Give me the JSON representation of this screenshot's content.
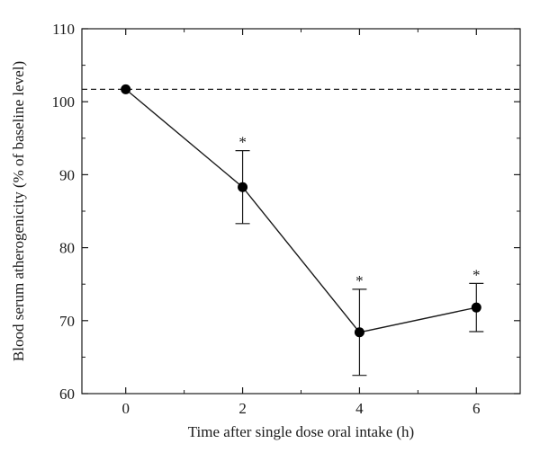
{
  "chart_data": {
    "type": "line",
    "xlabel": "Time after single dose oral intake (h)",
    "ylabel": "Blood serum atherogenicity (% of baseline level)",
    "xlim": [
      -0.75,
      6.75
    ],
    "ylim": [
      60,
      110
    ],
    "x_ticks": [
      0,
      2,
      4,
      6
    ],
    "y_ticks": [
      60,
      70,
      80,
      90,
      100,
      110
    ],
    "baseline": 101.7,
    "baseline_style": "dashed",
    "grid": false,
    "series": [
      {
        "x": [
          0,
          2,
          4,
          6
        ],
        "y": [
          101.7,
          88.3,
          68.4,
          71.8
        ],
        "error": [
          0,
          5.0,
          5.9,
          3.3
        ],
        "significance": [
          "",
          "*",
          "*",
          "*"
        ]
      }
    ]
  }
}
